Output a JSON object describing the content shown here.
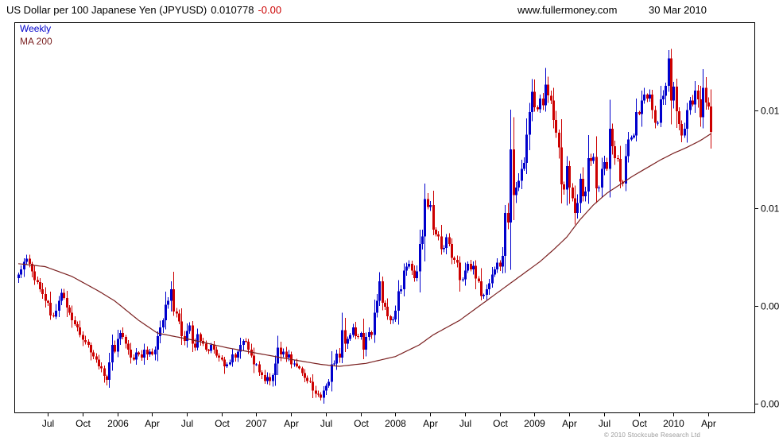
{
  "header": {
    "title": "US Dollar per 100 Japanese Yen (JPYUSD)",
    "price": "0.010778",
    "change": "-0.00",
    "website": "www.fullermoney.com",
    "date": "30 Mar 2010"
  },
  "legend": {
    "weekly": "Weekly",
    "ma": "MA 200"
  },
  "footer": {
    "copyright": "© 2010 Stockcube Research Ltd"
  },
  "colors": {
    "up": "#0000cc",
    "down": "#cc0000",
    "ma": "#7a2020",
    "axis": "#000000",
    "text": "#000000",
    "copyright": "#9a9a9a",
    "background": "#ffffff"
  },
  "chart_data": {
    "type": "candlestick",
    "title": "US Dollar per 100 Japanese Yen (JPYUSD)",
    "timeframe": "Weekly",
    "overlay": "MA 200",
    "unit": "USD per 100 JPY",
    "last_price": 0.010778,
    "change_label": "-0.00",
    "as_of": "30 Mar 2010",
    "ylim": [
      0.0079,
      0.0119
    ],
    "yticks": [
      0.008,
      0.009,
      0.01,
      0.011
    ],
    "ytick_labels": [
      "0.008",
      "0.009",
      "0.01",
      "0.011"
    ],
    "grid": false,
    "x_weeks_visible": 277,
    "xticks": [
      {
        "week": 11,
        "label": "Jul"
      },
      {
        "week": 24,
        "label": "Oct"
      },
      {
        "week": 37,
        "label": "2006"
      },
      {
        "week": 50,
        "label": "Apr"
      },
      {
        "week": 63,
        "label": "Jul"
      },
      {
        "week": 76,
        "label": "Oct"
      },
      {
        "week": 89,
        "label": "2007"
      },
      {
        "week": 102,
        "label": "Apr"
      },
      {
        "week": 115,
        "label": "Jul"
      },
      {
        "week": 128,
        "label": "Oct"
      },
      {
        "week": 141,
        "label": "2008"
      },
      {
        "week": 154,
        "label": "Apr"
      },
      {
        "week": 167,
        "label": "Jul"
      },
      {
        "week": 180,
        "label": "Oct"
      },
      {
        "week": 193,
        "label": "2009"
      },
      {
        "week": 206,
        "label": "Apr"
      },
      {
        "week": 219,
        "label": "Jul"
      },
      {
        "week": 232,
        "label": "Oct"
      },
      {
        "week": 245,
        "label": "2010"
      },
      {
        "week": 258,
        "label": "Apr"
      }
    ],
    "weekly_close": [
      0.00932,
      0.00937,
      0.00945,
      0.00948,
      0.00943,
      0.00935,
      0.00926,
      0.00924,
      0.00917,
      0.00912,
      0.00905,
      0.00903,
      0.0089,
      0.00889,
      0.00895,
      0.00905,
      0.00913,
      0.00908,
      0.00898,
      0.00893,
      0.00885,
      0.00881,
      0.00878,
      0.0087,
      0.00865,
      0.00863,
      0.0086,
      0.00852,
      0.00848,
      0.00845,
      0.00838,
      0.00836,
      0.00828,
      0.00824,
      0.00842,
      0.0086,
      0.00853,
      0.00866,
      0.00872,
      0.00868,
      0.00861,
      0.00855,
      0.00847,
      0.00845,
      0.00852,
      0.0085,
      0.00847,
      0.00855,
      0.0085,
      0.00853,
      0.0085,
      0.00855,
      0.00869,
      0.00878,
      0.00885,
      0.00901,
      0.00905,
      0.00917,
      0.00894,
      0.00892,
      0.00884,
      0.00869,
      0.00864,
      0.00874,
      0.0088,
      0.00861,
      0.00857,
      0.00871,
      0.00864,
      0.00861,
      0.00855,
      0.00854,
      0.0086,
      0.00855,
      0.00849,
      0.00847,
      0.00845,
      0.00838,
      0.0084,
      0.00842,
      0.0085,
      0.00847,
      0.00853,
      0.0086,
      0.00864,
      0.00863,
      0.00855,
      0.00849,
      0.0084,
      0.0084,
      0.00832,
      0.00829,
      0.00823,
      0.00827,
      0.00823,
      0.00829,
      0.00841,
      0.00857,
      0.0085,
      0.00853,
      0.00847,
      0.0085,
      0.0084,
      0.00841,
      0.00838,
      0.00836,
      0.00831,
      0.00826,
      0.00823,
      0.00822,
      0.00813,
      0.0081,
      0.00809,
      0.00806,
      0.00813,
      0.00818,
      0.00822,
      0.0084,
      0.00841,
      0.00851,
      0.00847,
      0.00875,
      0.00861,
      0.00866,
      0.0087,
      0.00878,
      0.00869,
      0.00868,
      0.00872,
      0.00855,
      0.00868,
      0.00873,
      0.0087,
      0.00893,
      0.00905,
      0.00925,
      0.00903,
      0.00899,
      0.00889,
      0.00885,
      0.00886,
      0.00895,
      0.00915,
      0.00917,
      0.00936,
      0.0094,
      0.00943,
      0.00936,
      0.00928,
      0.00935,
      0.00963,
      0.00971,
      0.01009,
      0.01001,
      0.01003,
      0.00978,
      0.00973,
      0.00971,
      0.00958,
      0.00959,
      0.0097,
      0.00963,
      0.00949,
      0.00947,
      0.00944,
      0.00926,
      0.00927,
      0.00936,
      0.00943,
      0.00937,
      0.00941,
      0.00928,
      0.00925,
      0.0091,
      0.00911,
      0.00917,
      0.00923,
      0.00932,
      0.00937,
      0.00944,
      0.0094,
      0.00951,
      0.00995,
      0.00985,
      0.0106,
      0.01013,
      0.01021,
      0.01028,
      0.0104,
      0.01046,
      0.01075,
      0.01098,
      0.01119,
      0.01103,
      0.01101,
      0.01112,
      0.01105,
      0.01126,
      0.01115,
      0.0111,
      0.0109,
      0.01077,
      0.01062,
      0.01024,
      0.01019,
      0.01043,
      0.01021,
      0.0101,
      0.00995,
      0.01005,
      0.0103,
      0.01012,
      0.01017,
      0.01051,
      0.01048,
      0.01052,
      0.0102,
      0.01021,
      0.0104,
      0.01047,
      0.0104,
      0.01081,
      0.01063,
      0.01051,
      0.0105,
      0.01027,
      0.01025,
      0.01053,
      0.0107,
      0.01072,
      0.01074,
      0.01098,
      0.01096,
      0.0111,
      0.01116,
      0.01112,
      0.01116,
      0.011,
      0.01087,
      0.01087,
      0.01111,
      0.01115,
      0.01125,
      0.01153,
      0.0111,
      0.01124,
      0.01099,
      0.01086,
      0.01074,
      0.01081,
      0.011,
      0.0111,
      0.01106,
      0.0112,
      0.01111,
      0.01093,
      0.01123,
      0.01108,
      0.01104,
      0.01078
    ],
    "ma200": {
      "weeks": [
        0,
        10,
        20,
        30,
        36,
        45,
        52,
        65,
        78,
        88,
        100,
        113,
        120,
        130,
        141,
        150,
        155,
        165,
        170,
        180,
        185,
        190,
        195,
        200,
        205,
        210,
        215,
        220,
        225,
        230,
        235,
        240,
        245,
        250,
        255,
        259
      ],
      "values": [
        0.00943,
        0.0094,
        0.0093,
        0.00915,
        0.00905,
        0.00885,
        0.00872,
        0.00865,
        0.00857,
        0.00852,
        0.00846,
        0.0084,
        0.00838,
        0.00841,
        0.00848,
        0.0086,
        0.0087,
        0.00885,
        0.00895,
        0.00915,
        0.00925,
        0.00935,
        0.00945,
        0.00957,
        0.0097,
        0.00988,
        0.01003,
        0.01015,
        0.01024,
        0.01033,
        0.01041,
        0.01049,
        0.01056,
        0.01062,
        0.01069,
        0.01076
      ]
    }
  }
}
